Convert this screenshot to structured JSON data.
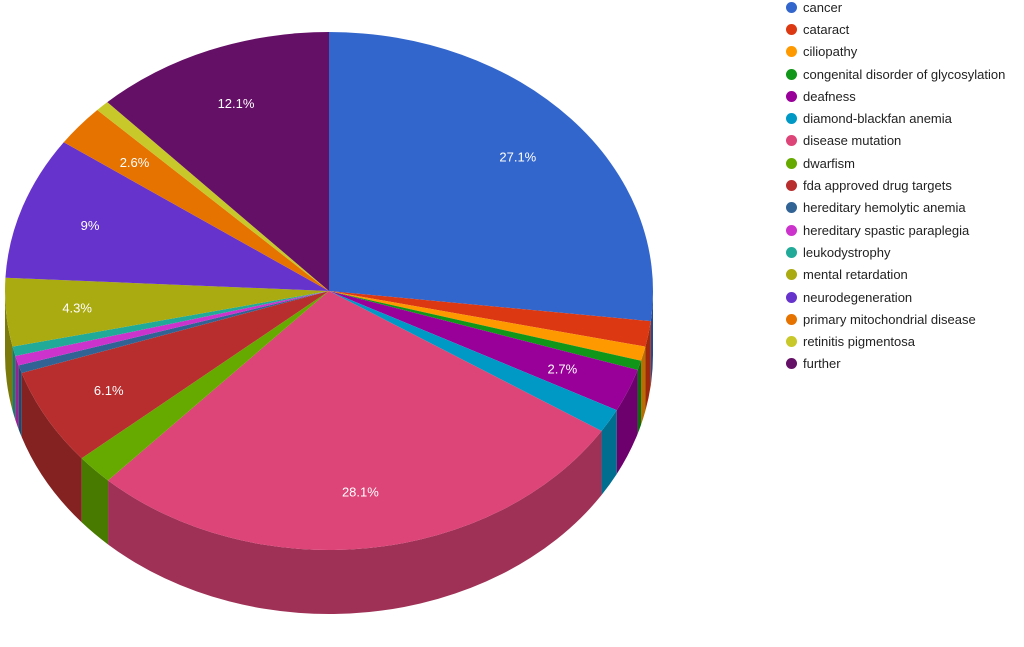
{
  "chart_data": {
    "type": "pie",
    "style": "3d",
    "legend_position": "right",
    "categories": [
      "cancer",
      "cataract",
      "ciliopathy",
      "congenital disorder of glycosylation",
      "deafness",
      "diamond-blackfan anemia",
      "disease mutation",
      "dwarfism",
      "fda approved drug targets",
      "hereditary hemolytic anemia",
      "hereditary spastic paraplegia",
      "leukodystrophy",
      "mental retardation",
      "neurodegeneration",
      "primary mitochondrial disease",
      "retinitis pigmentosa",
      "further"
    ],
    "values": [
      27.1,
      1.6,
      0.9,
      0.6,
      2.7,
      1.5,
      28.1,
      1.9,
      6.1,
      0.5,
      0.6,
      0.6,
      4.3,
      9,
      2.6,
      0.7,
      12.1
    ],
    "data_labels": [
      "27.1%",
      "",
      "",
      "",
      "2.7%",
      "",
      "28.1%",
      "",
      "6.1%",
      "",
      "",
      "",
      "4.3%",
      "9%",
      "2.6%",
      "",
      "12.1%"
    ],
    "colors": [
      "#3366cc",
      "#dc3912",
      "#ff9900",
      "#109618",
      "#990099",
      "#0099c6",
      "#dd4477",
      "#66aa00",
      "#b82e2e",
      "#316395",
      "#cc33cc",
      "#22aa99",
      "#aaaa11",
      "#6633cc",
      "#e67300",
      "#c8c82a",
      "#651067"
    ]
  }
}
